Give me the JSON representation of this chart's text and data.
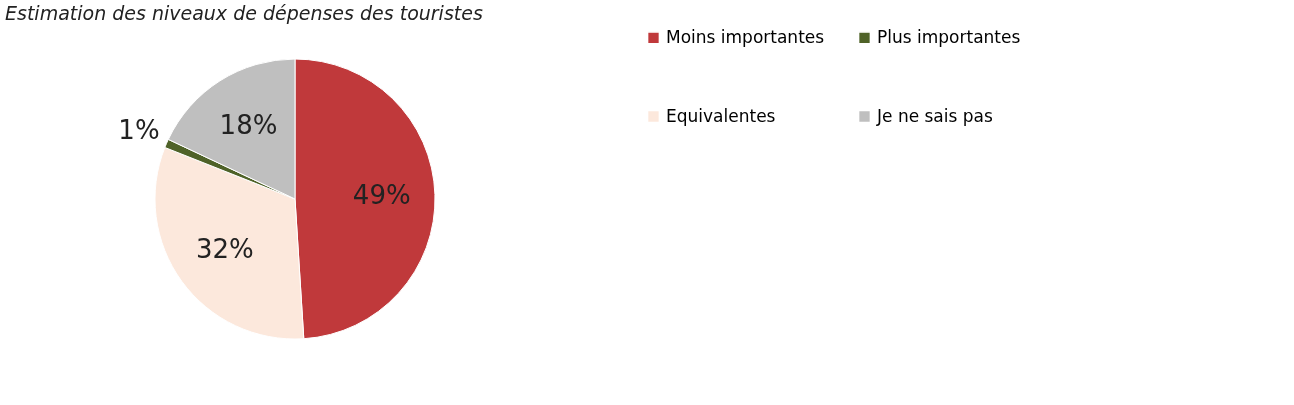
{
  "chart_data": {
    "type": "pie",
    "title": "Estimation des niveaux de dépenses des touristes",
    "categories": [
      "Moins importantes",
      "Equivalentes",
      "Plus importantes",
      "Je ne sais pas"
    ],
    "values": [
      49,
      32,
      1,
      18
    ],
    "colors": [
      "#c0393b",
      "#fce8dc",
      "#4f6228",
      "#bfbfbf"
    ],
    "value_labels": [
      "49%",
      "32%",
      "1%",
      "18%"
    ],
    "legend": "right"
  }
}
